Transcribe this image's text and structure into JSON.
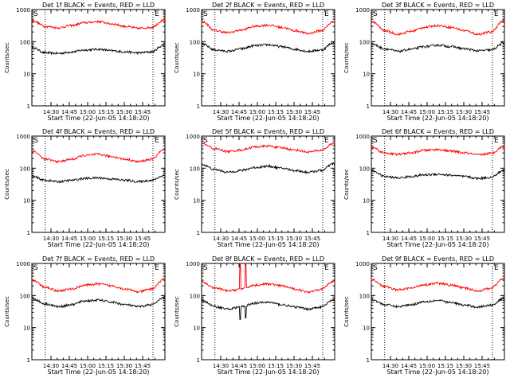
{
  "colors": {
    "events": "#000000",
    "lld": "#ff0000",
    "frame": "#000000",
    "background": "#ffffff"
  },
  "chart_data": [
    {
      "type": "line",
      "title": "Det 1f BLACK = Events, RED = LLD",
      "ylabel": "Counts/sec",
      "xlabel": "Start Time (22-Jun-05 14:18:20)",
      "x_ticks": [
        "14:30",
        "14:45",
        "15:00",
        "15:15",
        "15:30",
        "15:45"
      ],
      "y_ticks": [
        "1",
        "10",
        "100",
        "1000"
      ],
      "yscale": "log",
      "ylim": [
        1,
        1000
      ],
      "xlim_minutes": [
        0,
        100
      ],
      "markers": [
        {
          "label": "S",
          "minute": 0
        },
        {
          "label": "E",
          "minute": 91
        }
      ],
      "dotted_lines_minutes": [
        10,
        91
      ],
      "series": [
        {
          "name": "Events",
          "color": "black",
          "x": [
            0,
            10,
            20,
            30,
            40,
            50,
            60,
            70,
            80,
            90,
            100
          ],
          "values": [
            65,
            45,
            43,
            48,
            55,
            58,
            52,
            48,
            45,
            48,
            80
          ]
        },
        {
          "name": "LLD",
          "color": "red",
          "x": [
            0,
            10,
            20,
            30,
            40,
            50,
            60,
            70,
            80,
            90,
            100
          ],
          "values": [
            450,
            300,
            270,
            320,
            390,
            420,
            360,
            300,
            260,
            280,
            480
          ]
        }
      ]
    },
    {
      "type": "line",
      "title": "Det 2f BLACK = Events, RED = LLD",
      "ylabel": "Counts/sec",
      "xlabel": "Start Time (22-Jun-05 14:18:20)",
      "x_ticks": [
        "14:30",
        "14:45",
        "15:00",
        "15:15",
        "15:30",
        "15:45"
      ],
      "y_ticks": [
        "1",
        "10",
        "100",
        "1000"
      ],
      "yscale": "log",
      "ylim": [
        1,
        1000
      ],
      "xlim_minutes": [
        0,
        100
      ],
      "markers": [
        {
          "label": "S",
          "minute": 0
        },
        {
          "label": "E",
          "minute": 91
        }
      ],
      "dotted_lines_minutes": [
        10,
        91
      ],
      "series": [
        {
          "name": "Events",
          "color": "black",
          "x": [
            0,
            10,
            20,
            30,
            40,
            50,
            60,
            70,
            80,
            90,
            100
          ],
          "values": [
            85,
            55,
            50,
            60,
            75,
            80,
            70,
            58,
            50,
            55,
            95
          ]
        },
        {
          "name": "LLD",
          "color": "red",
          "x": [
            0,
            10,
            20,
            30,
            40,
            50,
            60,
            70,
            80,
            90,
            100
          ],
          "values": [
            420,
            220,
            190,
            230,
            300,
            330,
            280,
            220,
            180,
            220,
            430
          ]
        }
      ]
    },
    {
      "type": "line",
      "title": "Det 3f BLACK = Events, RED = LLD",
      "ylabel": "Counts/sec",
      "xlabel": "Start Time (22-Jun-05 14:18:20)",
      "x_ticks": [
        "14:30",
        "14:45",
        "15:00",
        "15:15",
        "15:30",
        "15:45"
      ],
      "y_ticks": [
        "1",
        "10",
        "100",
        "1000"
      ],
      "yscale": "log",
      "ylim": [
        1,
        1000
      ],
      "xlim_minutes": [
        0,
        100
      ],
      "markers": [
        {
          "label": "S",
          "minute": 0
        },
        {
          "label": "E",
          "minute": 91
        }
      ],
      "dotted_lines_minutes": [
        10,
        91
      ],
      "series": [
        {
          "name": "Events",
          "color": "black",
          "x": [
            0,
            10,
            20,
            30,
            40,
            50,
            60,
            70,
            80,
            90,
            100
          ],
          "values": [
            85,
            60,
            50,
            58,
            70,
            78,
            70,
            60,
            52,
            55,
            90
          ]
        },
        {
          "name": "LLD",
          "color": "red",
          "x": [
            0,
            10,
            20,
            30,
            40,
            50,
            60,
            70,
            80,
            90,
            100
          ],
          "values": [
            420,
            220,
            170,
            210,
            280,
            320,
            280,
            220,
            170,
            200,
            450
          ]
        }
      ]
    },
    {
      "type": "line",
      "title": "Det 4f BLACK = Events, RED = LLD",
      "ylabel": "Counts/sec",
      "xlabel": "Start Time (22-Jun-05 14:18:20)",
      "x_ticks": [
        "14:30",
        "14:45",
        "15:00",
        "15:15",
        "15:30",
        "15:45"
      ],
      "y_ticks": [
        "1",
        "10",
        "100",
        "1000"
      ],
      "yscale": "log",
      "ylim": [
        1,
        1000
      ],
      "xlim_minutes": [
        0,
        100
      ],
      "markers": [
        {
          "label": "S",
          "minute": 0
        },
        {
          "label": "E",
          "minute": 91
        }
      ],
      "dotted_lines_minutes": [
        10,
        91
      ],
      "series": [
        {
          "name": "Events",
          "color": "black",
          "x": [
            0,
            10,
            20,
            30,
            40,
            50,
            60,
            70,
            80,
            90,
            100
          ],
          "values": [
            55,
            42,
            38,
            42,
            48,
            50,
            46,
            42,
            38,
            42,
            60
          ]
        },
        {
          "name": "LLD",
          "color": "red",
          "x": [
            0,
            10,
            20,
            30,
            40,
            50,
            60,
            70,
            80,
            90,
            100
          ],
          "values": [
            350,
            190,
            160,
            190,
            250,
            270,
            230,
            190,
            160,
            190,
            380
          ]
        }
      ]
    },
    {
      "type": "line",
      "title": "Det 5f BLACK = Events, RED = LLD",
      "ylabel": "Counts/sec",
      "xlabel": "Start Time (22-Jun-05 14:18:20)",
      "x_ticks": [
        "14:30",
        "14:45",
        "15:00",
        "15:15",
        "15:30",
        "15:45"
      ],
      "y_ticks": [
        "1",
        "10",
        "100",
        "1000"
      ],
      "yscale": "log",
      "ylim": [
        1,
        1000
      ],
      "xlim_minutes": [
        0,
        100
      ],
      "markers": [
        {
          "label": "S",
          "minute": 0
        },
        {
          "label": "E",
          "minute": 91
        }
      ],
      "dotted_lines_minutes": [
        10,
        91
      ],
      "series": [
        {
          "name": "Events",
          "color": "black",
          "x": [
            0,
            10,
            20,
            30,
            40,
            50,
            60,
            70,
            80,
            90,
            100
          ],
          "values": [
            130,
            90,
            75,
            85,
            105,
            115,
            100,
            85,
            75,
            85,
            140
          ]
        },
        {
          "name": "LLD",
          "color": "red",
          "x": [
            0,
            10,
            20,
            30,
            40,
            50,
            60,
            70,
            80,
            90,
            100
          ],
          "values": [
            580,
            400,
            330,
            370,
            460,
            490,
            430,
            370,
            320,
            360,
            600
          ]
        }
      ]
    },
    {
      "type": "line",
      "title": "Det 6f BLACK = Events, RED = LLD",
      "ylabel": "Counts/sec",
      "xlabel": "Start Time (22-Jun-05 14:18:20)",
      "x_ticks": [
        "14:30",
        "14:45",
        "15:00",
        "15:15",
        "15:30",
        "15:45"
      ],
      "y_ticks": [
        "1",
        "10",
        "100",
        "1000"
      ],
      "yscale": "log",
      "ylim": [
        1,
        1000
      ],
      "xlim_minutes": [
        0,
        100
      ],
      "markers": [
        {
          "label": "S",
          "minute": 0
        },
        {
          "label": "E",
          "minute": 91
        }
      ],
      "dotted_lines_minutes": [
        10,
        91
      ],
      "series": [
        {
          "name": "Events",
          "color": "black",
          "x": [
            0,
            10,
            20,
            30,
            40,
            50,
            60,
            70,
            80,
            90,
            100
          ],
          "values": [
            85,
            55,
            50,
            55,
            62,
            65,
            60,
            55,
            48,
            52,
            85
          ]
        },
        {
          "name": "LLD",
          "color": "red",
          "x": [
            0,
            10,
            20,
            30,
            40,
            50,
            60,
            70,
            80,
            90,
            100
          ],
          "values": [
            450,
            300,
            270,
            300,
            360,
            380,
            340,
            300,
            260,
            290,
            480
          ]
        }
      ]
    },
    {
      "type": "line",
      "title": "Det 7f BLACK = Events, RED = LLD",
      "ylabel": "Counts/sec",
      "xlabel": "Start Time (22-Jun-05 14:18:20)",
      "x_ticks": [
        "14:30",
        "14:45",
        "15:00",
        "15:15",
        "15:30",
        "15:45"
      ],
      "y_ticks": [
        "1",
        "10",
        "100",
        "1000"
      ],
      "yscale": "log",
      "ylim": [
        1,
        1000
      ],
      "xlim_minutes": [
        0,
        100
      ],
      "markers": [
        {
          "label": "S",
          "minute": 0
        },
        {
          "label": "E",
          "minute": 91
        }
      ],
      "dotted_lines_minutes": [
        10,
        91
      ],
      "series": [
        {
          "name": "Events",
          "color": "black",
          "x": [
            0,
            10,
            20,
            30,
            40,
            50,
            60,
            70,
            80,
            90,
            100
          ],
          "values": [
            80,
            55,
            45,
            52,
            68,
            72,
            62,
            52,
            45,
            52,
            85
          ]
        },
        {
          "name": "LLD",
          "color": "red",
          "x": [
            0,
            10,
            20,
            30,
            40,
            50,
            60,
            70,
            80,
            90,
            100
          ],
          "values": [
            300,
            180,
            140,
            160,
            210,
            230,
            200,
            160,
            130,
            160,
            320
          ]
        }
      ]
    },
    {
      "type": "line",
      "title": "Det 8f BLACK = Events, RED = LLD",
      "ylabel": "Counts/sec",
      "xlabel": "Start Time (22-Jun-05 14:18:20)",
      "x_ticks": [
        "14:30",
        "14:45",
        "15:00",
        "15:15",
        "15:30",
        "15:45"
      ],
      "y_ticks": [
        "1",
        "10",
        "100",
        "1000"
      ],
      "yscale": "log",
      "ylim": [
        1,
        1000
      ],
      "xlim_minutes": [
        0,
        100
      ],
      "markers": [
        {
          "label": "S",
          "minute": 0
        },
        {
          "label": "E",
          "minute": 91
        }
      ],
      "dotted_lines_minutes": [
        10,
        91
      ],
      "spikes": [
        {
          "minute": 29,
          "events_low": 18,
          "lld_high": 1000
        },
        {
          "minute": 33,
          "events_low": 20,
          "lld_high": 1000
        }
      ],
      "series": [
        {
          "name": "Events",
          "color": "black",
          "x": [
            0,
            10,
            20,
            30,
            40,
            50,
            60,
            70,
            80,
            90,
            100
          ],
          "values": [
            70,
            45,
            38,
            45,
            58,
            62,
            52,
            44,
            38,
            44,
            75
          ]
        },
        {
          "name": "LLD",
          "color": "red",
          "x": [
            0,
            10,
            20,
            30,
            40,
            50,
            60,
            70,
            80,
            90,
            100
          ],
          "values": [
            260,
            170,
            140,
            160,
            210,
            230,
            200,
            160,
            130,
            160,
            280
          ]
        }
      ]
    },
    {
      "type": "line",
      "title": "Det 9f BLACK = Events, RED = LLD",
      "ylabel": "Counts/sec",
      "xlabel": "Start Time (22-Jun-05 14:18:20)",
      "x_ticks": [
        "14:30",
        "14:45",
        "15:00",
        "15:15",
        "15:30",
        "15:45"
      ],
      "y_ticks": [
        "1",
        "10",
        "100",
        "1000"
      ],
      "yscale": "log",
      "ylim": [
        1,
        1000
      ],
      "xlim_minutes": [
        0,
        100
      ],
      "markers": [
        {
          "label": "S",
          "minute": 0
        },
        {
          "label": "E",
          "minute": 91
        }
      ],
      "dotted_lines_minutes": [
        10,
        91
      ],
      "series": [
        {
          "name": "Events",
          "color": "black",
          "x": [
            0,
            10,
            20,
            30,
            40,
            50,
            60,
            70,
            80,
            90,
            100
          ],
          "values": [
            75,
            52,
            45,
            52,
            65,
            70,
            60,
            50,
            44,
            50,
            80
          ]
        },
        {
          "name": "LLD",
          "color": "red",
          "x": [
            0,
            10,
            20,
            30,
            40,
            50,
            60,
            70,
            80,
            90,
            100
          ],
          "values": [
            320,
            190,
            150,
            170,
            220,
            240,
            210,
            170,
            140,
            170,
            340
          ]
        }
      ]
    }
  ]
}
